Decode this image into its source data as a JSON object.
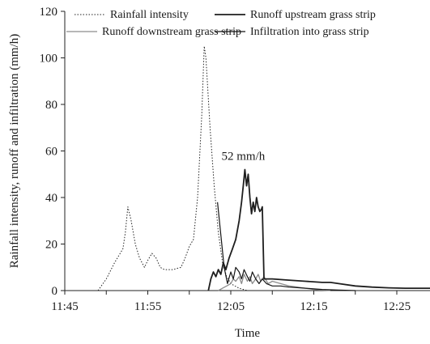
{
  "chart_data": {
    "type": "line",
    "title": "",
    "xlabel": "Time",
    "ylabel": "Rainfall intensity, runoff and infiltration (mm/h)",
    "xlim_minutes": [
      45,
      89
    ],
    "ylim": [
      0,
      120
    ],
    "x_ticks": [
      {
        "minute": 45,
        "label": "11:45"
      },
      {
        "minute": 55,
        "label": "11:55"
      },
      {
        "minute": 65,
        "label": "12:05"
      },
      {
        "minute": 75,
        "label": "12:15"
      },
      {
        "minute": 85,
        "label": "12:25"
      }
    ],
    "y_ticks": [
      0,
      20,
      40,
      60,
      80,
      100,
      120
    ],
    "annotation": {
      "text": "52 mm/h",
      "x_minute": 66.5,
      "y": 58
    },
    "legend": [
      {
        "label": "Rainfall intensity",
        "series": "rainfall"
      },
      {
        "label": "Runoff upstream grass strip",
        "series": "upstream"
      },
      {
        "label": "Runoff  downstream grass strip",
        "series": "downstream"
      },
      {
        "label": "Infiltration into grass strip",
        "series": "infiltration"
      }
    ],
    "series": [
      {
        "id": "rainfall",
        "name": "Rainfall intensity",
        "color": "#222222",
        "dash": "1.5,2",
        "width": 1,
        "points": [
          [
            49,
            0
          ],
          [
            50,
            5
          ],
          [
            51,
            12
          ],
          [
            52,
            18
          ],
          [
            52.3,
            25
          ],
          [
            52.6,
            36
          ],
          [
            53,
            30
          ],
          [
            53.5,
            20
          ],
          [
            54,
            14
          ],
          [
            54.6,
            10
          ],
          [
            55,
            13
          ],
          [
            55.5,
            16
          ],
          [
            56,
            14
          ],
          [
            56.5,
            10
          ],
          [
            57,
            9
          ],
          [
            58,
            9
          ],
          [
            59,
            10
          ],
          [
            59.5,
            14
          ],
          [
            60,
            19
          ],
          [
            60.5,
            22
          ],
          [
            61,
            40
          ],
          [
            61.5,
            75
          ],
          [
            61.8,
            105
          ],
          [
            62,
            100
          ],
          [
            62.5,
            70
          ],
          [
            63,
            45
          ],
          [
            63.5,
            25
          ],
          [
            64,
            12
          ],
          [
            64.5,
            6
          ],
          [
            65,
            3
          ],
          [
            65.5,
            2
          ],
          [
            66,
            1
          ],
          [
            67,
            0
          ]
        ]
      },
      {
        "id": "upstream",
        "name": "Runoff upstream grass strip",
        "color": "#1e1e1e",
        "dash": "",
        "width": 1.8,
        "points": [
          [
            62.3,
            0
          ],
          [
            62.6,
            5
          ],
          [
            62.9,
            8
          ],
          [
            63.2,
            6
          ],
          [
            63.5,
            9
          ],
          [
            63.8,
            7
          ],
          [
            64.1,
            12
          ],
          [
            64.4,
            9
          ],
          [
            64.8,
            14
          ],
          [
            65.2,
            18
          ],
          [
            65.6,
            22
          ],
          [
            66,
            30
          ],
          [
            66.3,
            38
          ],
          [
            66.5,
            45
          ],
          [
            66.7,
            52
          ],
          [
            66.9,
            45
          ],
          [
            67.1,
            50
          ],
          [
            67.3,
            40
          ],
          [
            67.5,
            33
          ],
          [
            67.7,
            38
          ],
          [
            67.9,
            34
          ],
          [
            68.1,
            40
          ],
          [
            68.3,
            36
          ],
          [
            68.5,
            34
          ],
          [
            68.7,
            35
          ],
          [
            68.8,
            36
          ],
          [
            69,
            5
          ],
          [
            70,
            5
          ],
          [
            72,
            4.5
          ],
          [
            74,
            4
          ],
          [
            76,
            3.5
          ],
          [
            77,
            3.5
          ],
          [
            78,
            3
          ],
          [
            80,
            2
          ],
          [
            82,
            1.5
          ],
          [
            84,
            1.2
          ],
          [
            86,
            1
          ],
          [
            89,
            1
          ]
        ]
      },
      {
        "id": "downstream",
        "name": "Runoff  downstream grass strip",
        "color": "#8c8c8c",
        "dash": "",
        "width": 1.3,
        "points": [
          [
            63.5,
            0
          ],
          [
            64,
            1
          ],
          [
            64.5,
            2
          ],
          [
            65,
            3
          ],
          [
            65.3,
            5
          ],
          [
            65.6,
            4
          ],
          [
            66,
            6
          ],
          [
            66.3,
            3
          ],
          [
            66.6,
            7
          ],
          [
            67,
            4
          ],
          [
            67.3,
            6
          ],
          [
            67.6,
            3
          ],
          [
            68,
            5
          ],
          [
            68.3,
            7
          ],
          [
            68.6,
            4
          ],
          [
            69,
            6
          ],
          [
            69.5,
            3
          ],
          [
            70,
            4
          ],
          [
            71,
            3
          ],
          [
            72,
            2
          ],
          [
            73,
            1.5
          ],
          [
            74,
            1
          ],
          [
            75,
            0.5
          ],
          [
            76,
            0.2
          ],
          [
            77,
            0
          ]
        ]
      },
      {
        "id": "infiltration",
        "name": "Infiltration into grass strip",
        "color": "#151515",
        "dash": "",
        "width": 1.2,
        "points": [
          [
            63.4,
            38
          ],
          [
            64.2,
            10
          ],
          [
            64.6,
            3
          ],
          [
            65,
            8
          ],
          [
            65.3,
            5
          ],
          [
            65.6,
            10
          ],
          [
            66,
            8
          ],
          [
            66.3,
            5
          ],
          [
            66.6,
            9
          ],
          [
            67,
            6
          ],
          [
            67.3,
            4
          ],
          [
            67.6,
            8
          ],
          [
            68,
            5
          ],
          [
            68.4,
            3
          ],
          [
            68.8,
            5
          ],
          [
            69.3,
            3
          ],
          [
            70,
            2
          ],
          [
            71,
            2
          ],
          [
            72,
            1.5
          ],
          [
            74,
            1
          ],
          [
            76,
            0.5
          ],
          [
            78,
            0.2
          ],
          [
            80,
            0
          ]
        ]
      }
    ]
  }
}
